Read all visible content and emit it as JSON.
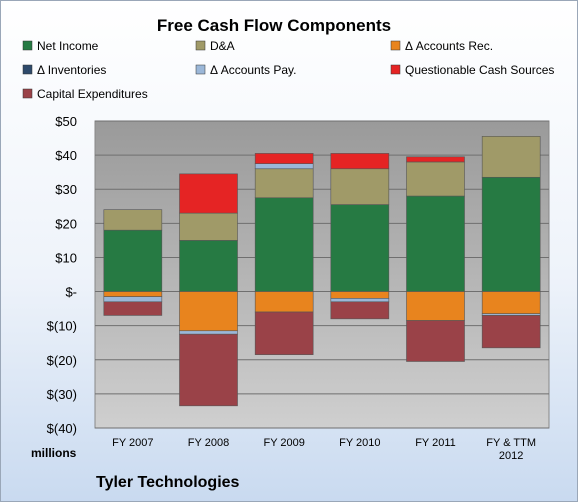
{
  "chart_data": {
    "type": "bar",
    "stacked": true,
    "title": "Free Cash Flow Components",
    "units_label": "millions",
    "footer": "Tyler Technologies",
    "categories": [
      "FY 2007",
      "FY 2008",
      "FY 2009",
      "FY 2010",
      "FY 2011",
      "FY & TTM\n2012"
    ],
    "ylim": [
      -40,
      50
    ],
    "yticks": [
      -40,
      -30,
      -20,
      -10,
      0,
      10,
      20,
      30,
      40,
      50
    ],
    "ytick_labels": [
      "$(40)",
      "$(30)",
      "$(20)",
      "$(10)",
      "$-",
      "$10",
      "$20",
      "$30",
      "$40",
      "$50"
    ],
    "grid": true,
    "legend_position": "top",
    "series": [
      {
        "name": "Net Income",
        "color": "#267a43",
        "values": [
          18,
          15,
          27.5,
          25.5,
          28,
          33.5
        ]
      },
      {
        "name": "D&A",
        "color": "#a09a68",
        "values": [
          6,
          8,
          8.5,
          10.5,
          10,
          12
        ]
      },
      {
        "name": "Δ Accounts Rec.",
        "color": "#e8841e",
        "values": [
          -1.5,
          -11.5,
          -6,
          -2,
          -8.5,
          -6.5
        ]
      },
      {
        "name": "Δ Inventories",
        "color": "#2e4a6b",
        "values": [
          0,
          0,
          0,
          0,
          0,
          0
        ]
      },
      {
        "name": "Δ Accounts Pay.",
        "color": "#9bb7d8",
        "values": [
          -1.5,
          -1,
          1.5,
          -1,
          0,
          -0.5
        ]
      },
      {
        "name": "Questionable Cash Sources",
        "color": "#e52424",
        "values": [
          0,
          11.5,
          3,
          4.5,
          1.5,
          0
        ]
      },
      {
        "name": "Capital Expenditures",
        "color": "#9a4248",
        "values": [
          -4,
          -21,
          -12.5,
          -5,
          -12,
          -9.5
        ]
      }
    ]
  }
}
